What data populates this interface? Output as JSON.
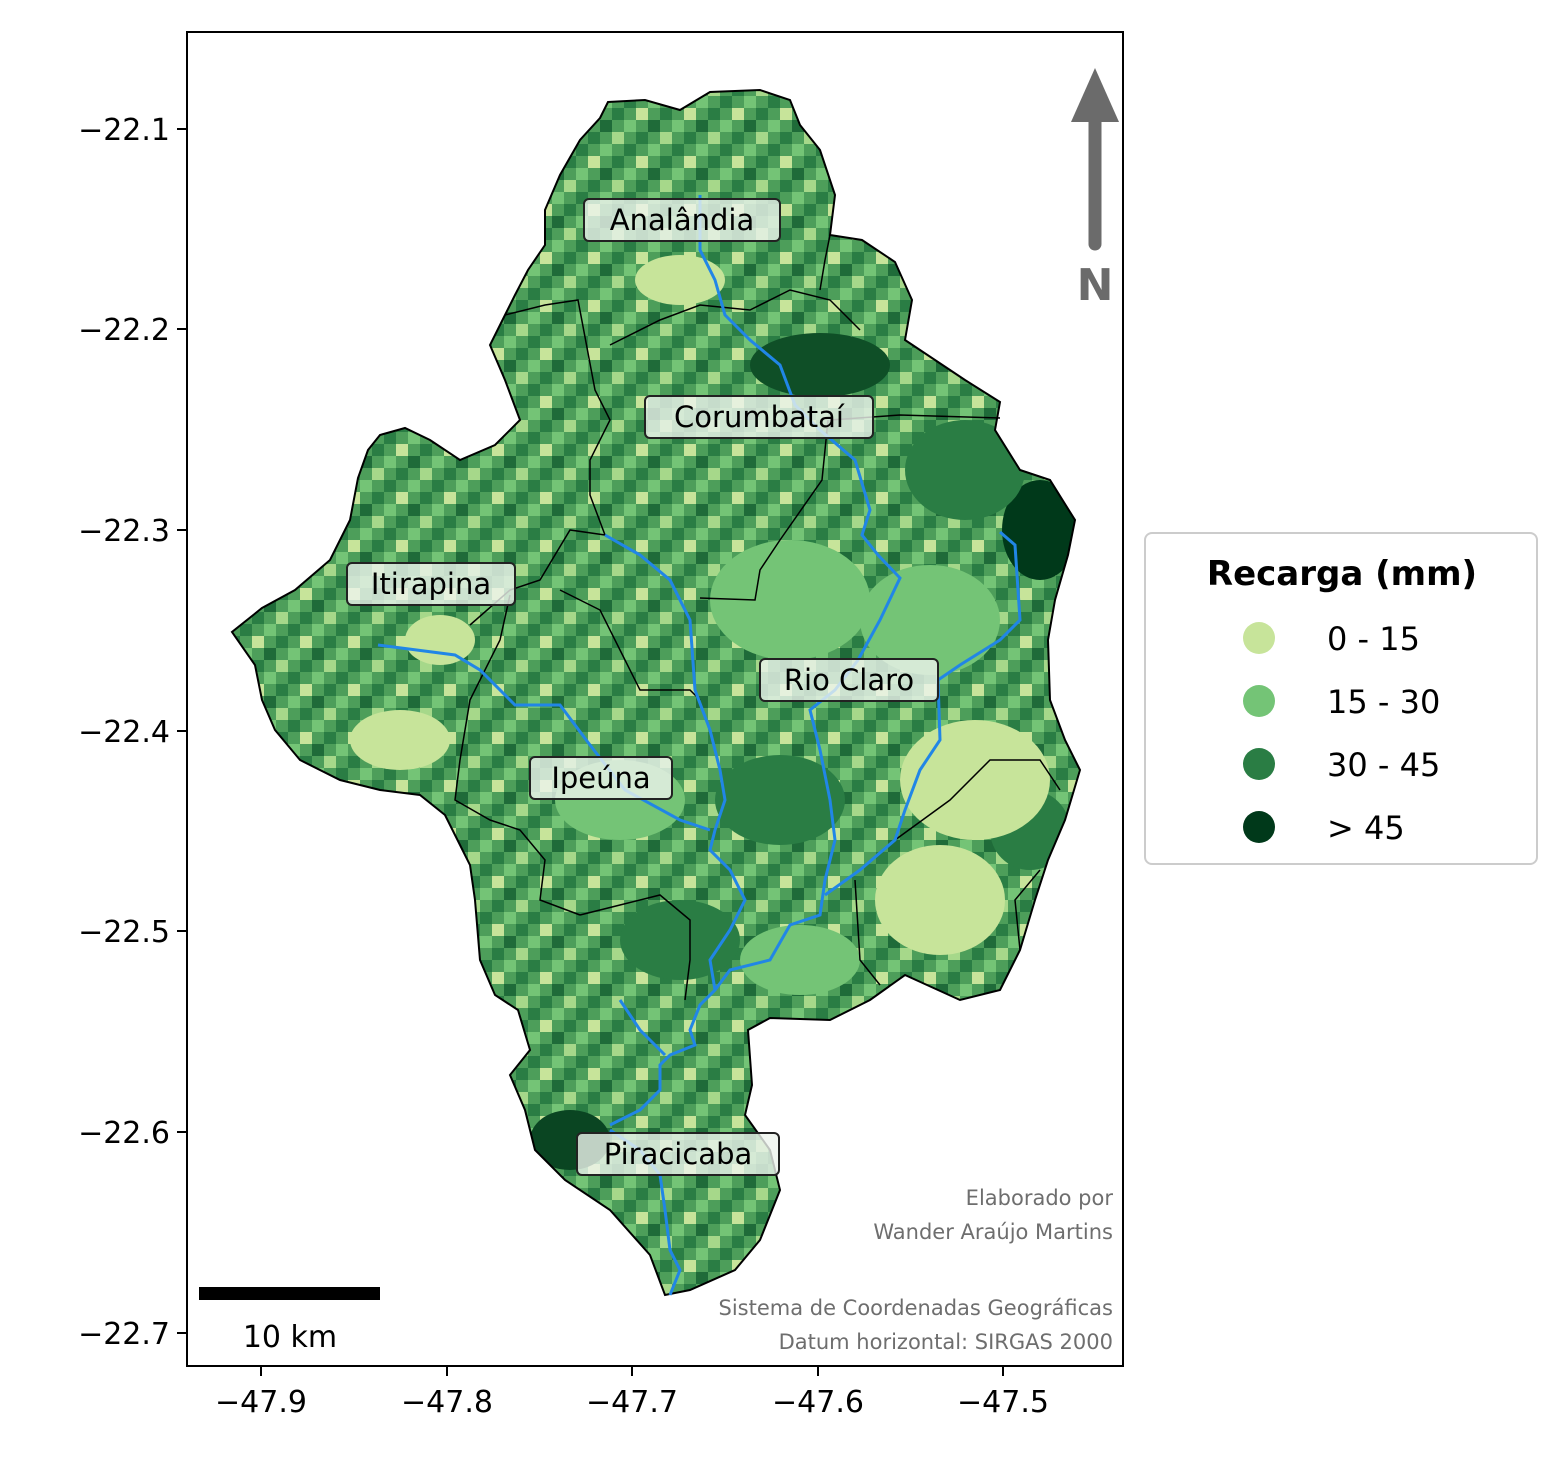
{
  "axes": {
    "x_ticks": [
      "−47.9",
      "−47.8",
      "−47.7",
      "−47.6",
      "−47.5"
    ],
    "y_ticks": [
      "−22.1",
      "−22.2",
      "−22.3",
      "−22.4",
      "−22.5",
      "−22.6",
      "−22.7"
    ]
  },
  "places": [
    {
      "name": "Analândia"
    },
    {
      "name": "Corumbataí"
    },
    {
      "name": "Itirapina"
    },
    {
      "name": "Rio Claro"
    },
    {
      "name": "Ipeúna"
    },
    {
      "name": "Piracicaba"
    }
  ],
  "north_arrow": {
    "label": "N",
    "color": "#6b6b6b"
  },
  "scale_bar": {
    "label": "10 km"
  },
  "credits": {
    "line1": "Elaborado por",
    "line2": "Wander Araújo Martins",
    "line3": "Sistema de Coordenadas Geográficas",
    "line4": "Datum horizontal: SIRGAS 2000"
  },
  "legend": {
    "title": "Recarga (mm)",
    "items": [
      {
        "label": "0 - 15",
        "color": "#c7e49a"
      },
      {
        "label": "15 - 30",
        "color": "#74c476"
      },
      {
        "label": "30 - 45",
        "color": "#2a7d44"
      },
      {
        "label": "> 45",
        "color": "#00391a"
      }
    ]
  },
  "river_color": "#2186e6"
}
